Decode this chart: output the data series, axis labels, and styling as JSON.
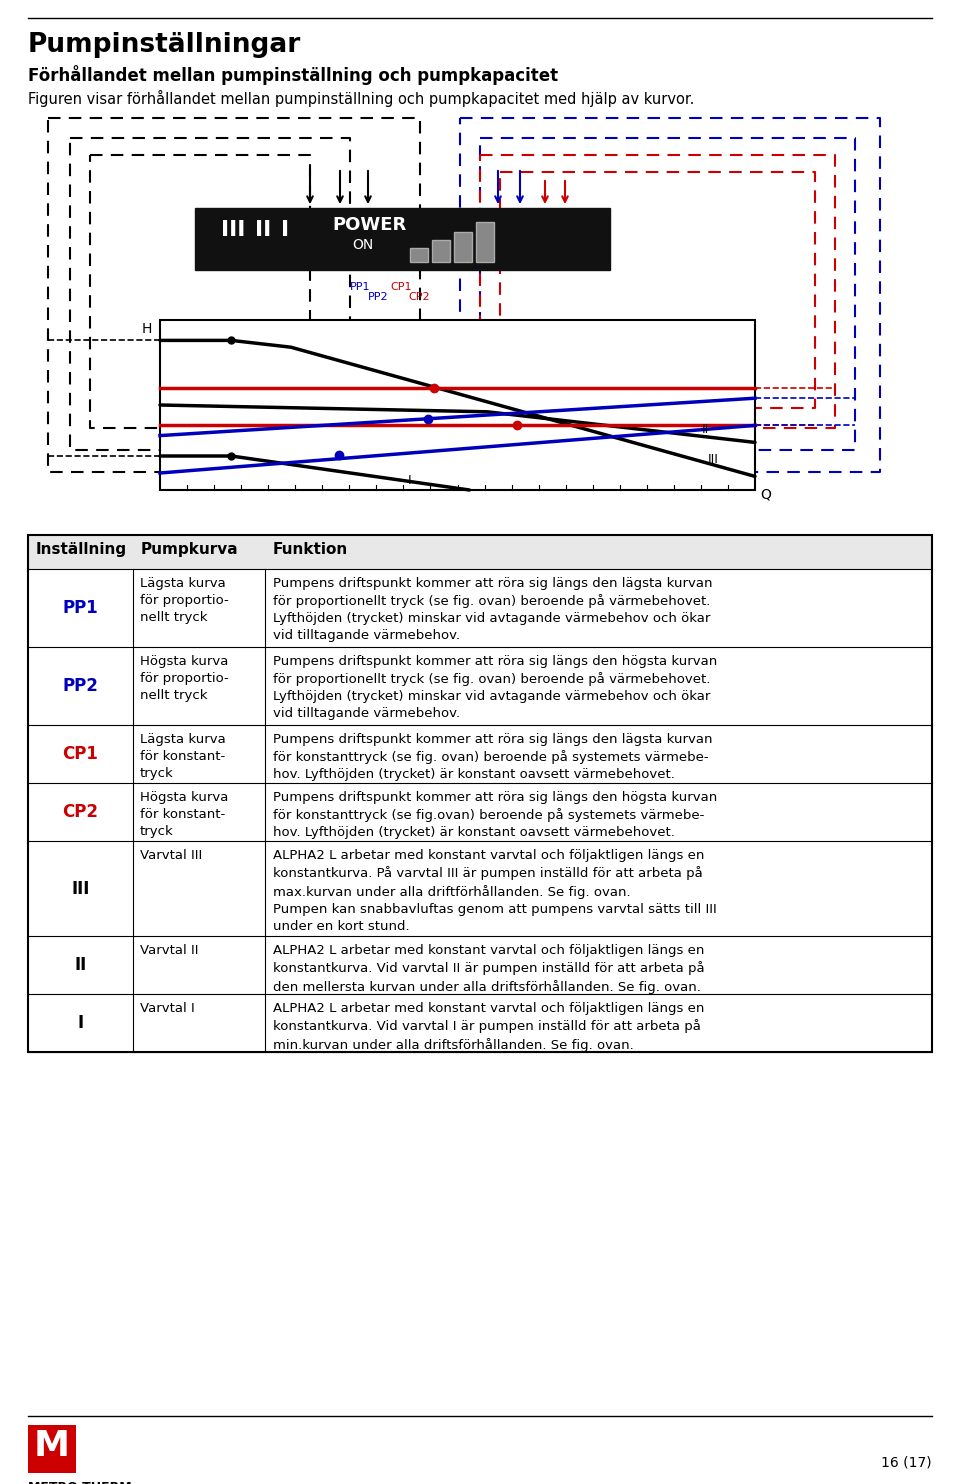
{
  "title": "Pumpinställningar",
  "subtitle": "Förhållandet mellan pumpinställning och pumpkapacitet",
  "description": "Figuren visar förhållandet mellan pumpinställning och pumpkapacitet med hjälp av kurvor.",
  "page_number": "16 (17)",
  "table_headers": [
    "Inställning",
    "Pumpkurva",
    "Funktion"
  ],
  "table_rows": [
    {
      "setting": "PP1",
      "setting_color": "#0000BB",
      "curve": "Lägsta kurva\nför proportio-\nnellt tryck",
      "function": "Pumpens driftspunkt kommer att röra sig längs den lägsta kurvan\nför proportionellt tryck (se fig. ovan) beroende på värmebehovet.\nLyfthöjden (trycket) minskar vid avtagande värmebehov och ökar\nvid tilltagande värmebehov."
    },
    {
      "setting": "PP2",
      "setting_color": "#0000BB",
      "curve": "Högsta kurva\nför proportio-\nnellt tryck",
      "function": "Pumpens driftspunkt kommer att röra sig längs den högsta kurvan\nför proportionellt tryck (se fig. ovan) beroende på värmebehovet.\nLyfthöjden (trycket) minskar vid avtagande värmebehov och ökar\nvid tilltagande värmebehov."
    },
    {
      "setting": "CP1",
      "setting_color": "#CC0000",
      "curve": "Lägsta kurva\nför konstant-\ntryck",
      "function": "Pumpens driftspunkt kommer att röra sig längs den lägsta kurvan\nför konstanttryck (se fig. ovan) beroende på systemets värmebe-\nhov. Lyfthöjden (trycket) är konstant oavsett värmebehovet."
    },
    {
      "setting": "CP2",
      "setting_color": "#CC0000",
      "curve": "Högsta kurva\nför konstant-\ntryck",
      "function": "Pumpens driftspunkt kommer att röra sig längs den högsta kurvan\nför konstanttryck (se fig.ovan) beroende på systemets värmebe-\nhov. Lyfthöjden (trycket) är konstant oavsett värmebehovet."
    },
    {
      "setting": "III",
      "setting_color": "#000000",
      "curve": "Varvtal III",
      "function": "ALPHA2 L arbetar med konstant varvtal och följaktligen längs en\nkonstantkurva. På varvtal III är pumpen inställd för att arbeta på\nmax.kurvan under alla driftförhållanden. Se fig. ovan.\nPumpen kan snabbavluftas genom att pumpens varvtal sätts till III\nunder en kort stund."
    },
    {
      "setting": "II",
      "setting_color": "#000000",
      "curve": "Varvtal II",
      "function": "ALPHA2 L arbetar med konstant varvtal och följaktligen längs en\nkonstantkurva. Vid varvtal II är pumpen inställd för att arbeta på\nden mellersta kurvan under alla driftsförhållanden. Se fig. ovan."
    },
    {
      "setting": "I",
      "setting_color": "#000000",
      "curve": "Varvtal I",
      "function": "ALPHA2 L arbetar med konstant varvtal och följaktligen längs en\nkonstantkurva. Vid varvtal I är pumpen inställd för att arbeta på\nmin.kurvan under alla driftsförhållanden. Se fig. ovan."
    }
  ],
  "background_color": "#ffffff",
  "blue_color": "#0000BB",
  "red_color": "#CC0000",
  "black_color": "#000000"
}
